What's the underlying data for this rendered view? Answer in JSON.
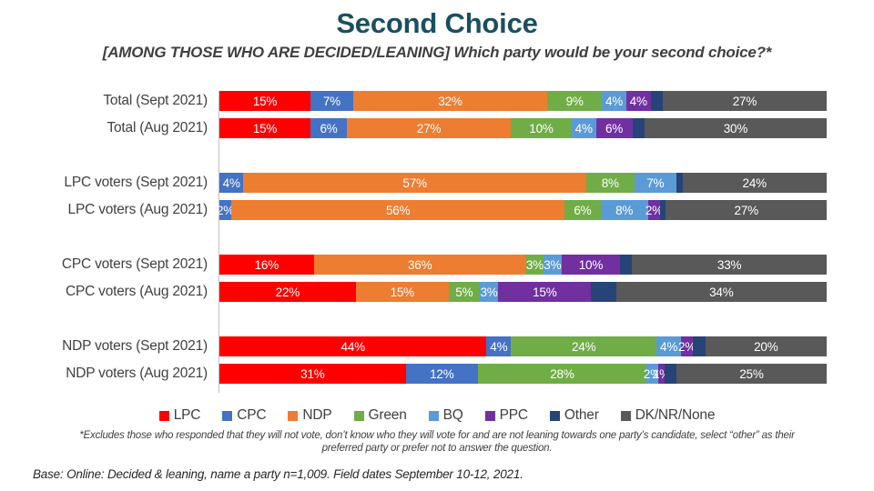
{
  "title": "Second Choice",
  "subtitle": "[AMONG THOSE WHO ARE DECIDED/LEANING] Which party would be your second choice?*",
  "footnote": "*Excludes those who responded that they will not vote, don’t know who they will vote for and are not leaning towards one party’s candidate, select “other” as their preferred party or prefer not to answer the question.",
  "base_note": "Base: Online: Decided & leaning, name a party n=1,009. Field dates September 10-12, 2021.",
  "title_color": "#1b4f5f",
  "chart_data": {
    "type": "bar",
    "stacked": true,
    "orientation": "horizontal",
    "xlim": [
      0,
      100
    ],
    "legend_position": "bottom",
    "parties": [
      {
        "name": "LPC",
        "color": "#fe0000"
      },
      {
        "name": "CPC",
        "color": "#4472c4"
      },
      {
        "name": "NDP",
        "color": "#ed7d31"
      },
      {
        "name": "Green",
        "color": "#70ad47"
      },
      {
        "name": "BQ",
        "color": "#5b9bd5"
      },
      {
        "name": "PPC",
        "color": "#7030a0"
      },
      {
        "name": "Other",
        "color": "#264478"
      },
      {
        "name": "DK/NR/None",
        "color": "#595959"
      }
    ],
    "rows": [
      {
        "label": "Total (Sept 2021)",
        "group": 0,
        "values": [
          15,
          7,
          32,
          9,
          4,
          4,
          2,
          27
        ],
        "segment_labels": [
          "15%",
          "7%",
          "32%",
          "9%",
          "4%",
          "4%",
          "",
          "27%"
        ]
      },
      {
        "label": "Total (Aug 2021)",
        "group": 0,
        "values": [
          15,
          6,
          27,
          10,
          4,
          6,
          2,
          30
        ],
        "segment_labels": [
          "15%",
          "6%",
          "27%",
          "10%",
          "4%",
          "6%",
          "",
          "30%"
        ]
      },
      {
        "label": "LPC voters (Sept 2021)",
        "group": 1,
        "values": [
          0,
          4,
          57,
          8,
          7,
          0,
          1,
          24
        ],
        "segment_labels": [
          "",
          "4%",
          "57%",
          "8%",
          "7%",
          "",
          "",
          "24%"
        ]
      },
      {
        "label": "LPC voters (Aug 2021)",
        "group": 1,
        "values": [
          0,
          2,
          56,
          6,
          8,
          2,
          1,
          27
        ],
        "segment_labels": [
          "",
          "2%",
          "56%",
          "6%",
          "8%",
          "2%",
          "",
          "27%"
        ]
      },
      {
        "label": "CPC voters (Sept 2021)",
        "group": 2,
        "values": [
          16,
          0,
          36,
          3,
          3,
          10,
          2,
          33
        ],
        "segment_labels": [
          "16%",
          "",
          "36%",
          "3%",
          "3%",
          "10%",
          "",
          "33%"
        ]
      },
      {
        "label": "CPC voters (Aug 2021)",
        "group": 2,
        "values": [
          22,
          0,
          15,
          5,
          3,
          15,
          4,
          34
        ],
        "segment_labels": [
          "22%",
          "",
          "15%",
          "5%",
          "3%",
          "15%",
          "",
          "34%"
        ]
      },
      {
        "label": "NDP voters (Sept 2021)",
        "group": 3,
        "values": [
          44,
          4,
          0,
          24,
          4,
          2,
          2,
          20
        ],
        "segment_labels": [
          "44%",
          "4%",
          "",
          "24%",
          "4%",
          "2%",
          "",
          "20%"
        ]
      },
      {
        "label": "NDP voters (Aug 2021)",
        "group": 3,
        "values": [
          31,
          12,
          0,
          28,
          2,
          1,
          2,
          25
        ],
        "segment_labels": [
          "31%",
          "12%",
          "",
          "28%",
          "2%",
          "1%",
          "",
          "25%"
        ]
      }
    ]
  }
}
